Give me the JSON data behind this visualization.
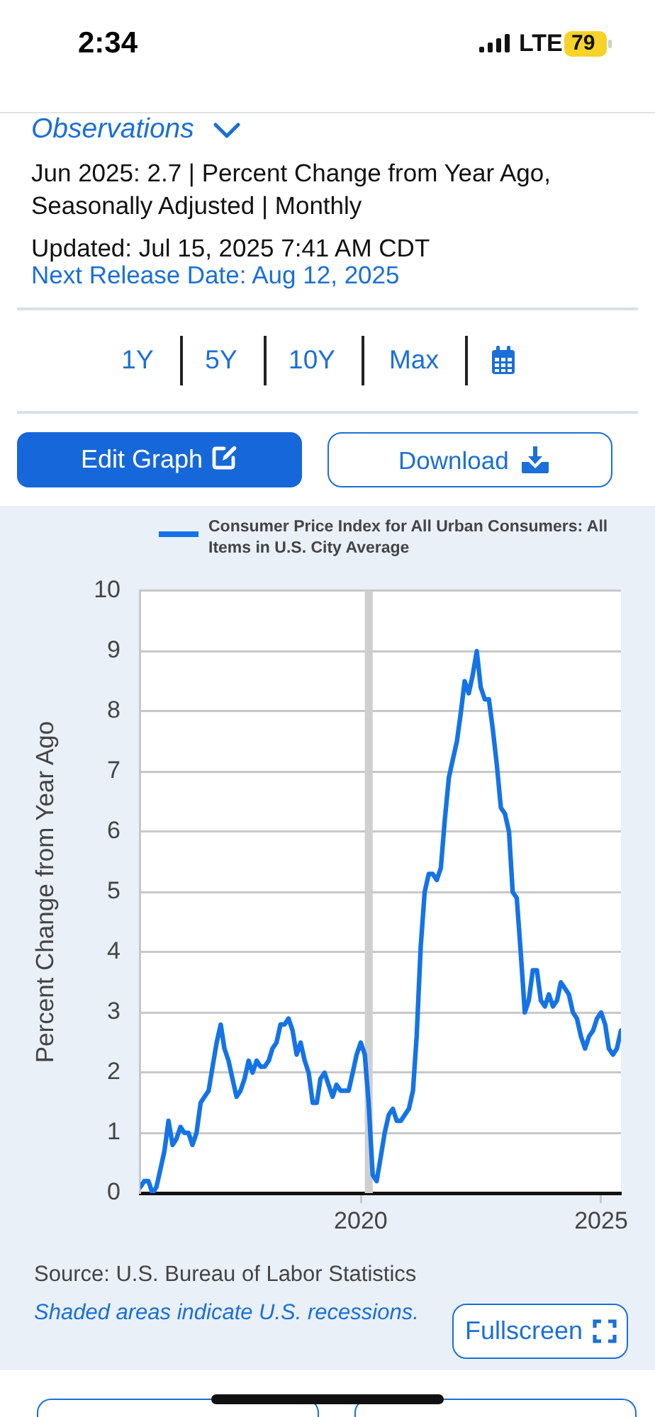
{
  "chart_data": {
    "type": "line",
    "ylabel": "Percent Change from Year Ago",
    "x": [
      "2015-06",
      "2015-07",
      "2015-08",
      "2015-09",
      "2015-10",
      "2015-11",
      "2015-12",
      "2016-01",
      "2016-02",
      "2016-03",
      "2016-04",
      "2016-05",
      "2016-06",
      "2016-07",
      "2016-08",
      "2016-09",
      "2016-10",
      "2016-11",
      "2016-12",
      "2017-01",
      "2017-02",
      "2017-03",
      "2017-04",
      "2017-05",
      "2017-06",
      "2017-07",
      "2017-08",
      "2017-09",
      "2017-10",
      "2017-11",
      "2017-12",
      "2018-01",
      "2018-02",
      "2018-03",
      "2018-04",
      "2018-05",
      "2018-06",
      "2018-07",
      "2018-08",
      "2018-09",
      "2018-10",
      "2018-11",
      "2018-12",
      "2019-01",
      "2019-02",
      "2019-03",
      "2019-04",
      "2019-05",
      "2019-06",
      "2019-07",
      "2019-08",
      "2019-09",
      "2019-10",
      "2019-11",
      "2019-12",
      "2020-01",
      "2020-02",
      "2020-03",
      "2020-04",
      "2020-05",
      "2020-06",
      "2020-07",
      "2020-08",
      "2020-09",
      "2020-10",
      "2020-11",
      "2020-12",
      "2021-01",
      "2021-02",
      "2021-03",
      "2021-04",
      "2021-05",
      "2021-06",
      "2021-07",
      "2021-08",
      "2021-09",
      "2021-10",
      "2021-11",
      "2021-12",
      "2022-01",
      "2022-02",
      "2022-03",
      "2022-04",
      "2022-05",
      "2022-06",
      "2022-07",
      "2022-08",
      "2022-09",
      "2022-10",
      "2022-11",
      "2022-12",
      "2023-01",
      "2023-02",
      "2023-03",
      "2023-04",
      "2023-05",
      "2023-06",
      "2023-07",
      "2023-08",
      "2023-09",
      "2023-10",
      "2023-11",
      "2023-12",
      "2024-01",
      "2024-02",
      "2024-03",
      "2024-04",
      "2024-05",
      "2024-06",
      "2024-07",
      "2024-08",
      "2024-09",
      "2024-10",
      "2024-11",
      "2024-12",
      "2025-01",
      "2025-02",
      "2025-03",
      "2025-04",
      "2025-05",
      "2025-06"
    ],
    "series": [
      {
        "name": "Consumer Price Index for All Urban Consumers: All Items in U.S. City Average",
        "color": "#1473e6",
        "values": [
          0.1,
          0.2,
          0.2,
          0.0,
          0.1,
          0.4,
          0.7,
          1.2,
          0.8,
          0.9,
          1.1,
          1.0,
          1.0,
          0.8,
          1.0,
          1.5,
          1.6,
          1.7,
          2.1,
          2.5,
          2.8,
          2.4,
          2.2,
          1.9,
          1.6,
          1.7,
          1.9,
          2.2,
          2.0,
          2.2,
          2.1,
          2.1,
          2.2,
          2.4,
          2.5,
          2.8,
          2.8,
          2.9,
          2.7,
          2.3,
          2.5,
          2.2,
          2.0,
          1.5,
          1.5,
          1.9,
          2.0,
          1.8,
          1.6,
          1.8,
          1.7,
          1.7,
          1.7,
          2.0,
          2.3,
          2.5,
          2.3,
          1.5,
          0.3,
          0.2,
          0.6,
          1.0,
          1.3,
          1.4,
          1.2,
          1.2,
          1.3,
          1.4,
          1.7,
          2.6,
          4.1,
          5.0,
          5.3,
          5.3,
          5.2,
          5.4,
          6.2,
          6.9,
          7.2,
          7.5,
          8.0,
          8.5,
          8.3,
          8.6,
          9.0,
          8.4,
          8.2,
          8.2,
          7.7,
          7.1,
          6.4,
          6.3,
          6.0,
          5.0,
          4.9,
          4.0,
          3.0,
          3.2,
          3.7,
          3.7,
          3.2,
          3.1,
          3.3,
          3.1,
          3.2,
          3.5,
          3.4,
          3.3,
          3.0,
          2.9,
          2.6,
          2.4,
          2.6,
          2.7,
          2.9,
          3.0,
          2.8,
          2.4,
          2.3,
          2.4,
          2.7
        ]
      }
    ],
    "xlim": [
      "2015-06",
      "2025-06"
    ],
    "xticks": [
      "2020",
      "2025"
    ],
    "ylim": [
      0,
      10
    ],
    "yticks": [
      0,
      1,
      2,
      3,
      4,
      5,
      6,
      7,
      8,
      9,
      10
    ],
    "grid": "y",
    "legend": "top",
    "bands": [
      {
        "axis": "x",
        "from": "2020-02",
        "to": "2020-04",
        "color": "#cfcfcf"
      }
    ],
    "annotations": [
      "2:34",
      "LTE",
      "79",
      "Observations",
      "Jun 2025: 2.7 | Percent Change from Year Ago, Seasonally Adjusted | Monthly",
      "Updated: Jul 15, 2025 7:41 AM CDT",
      "Next Release Date: Aug 12, 2025",
      "1Y",
      "5Y",
      "10Y",
      "Max",
      "Edit Graph",
      "Download",
      "Source: U.S. Bureau of Labor Statistics",
      "Shaded areas indicate U.S. recessions.",
      "Fullscreen"
    ]
  }
}
